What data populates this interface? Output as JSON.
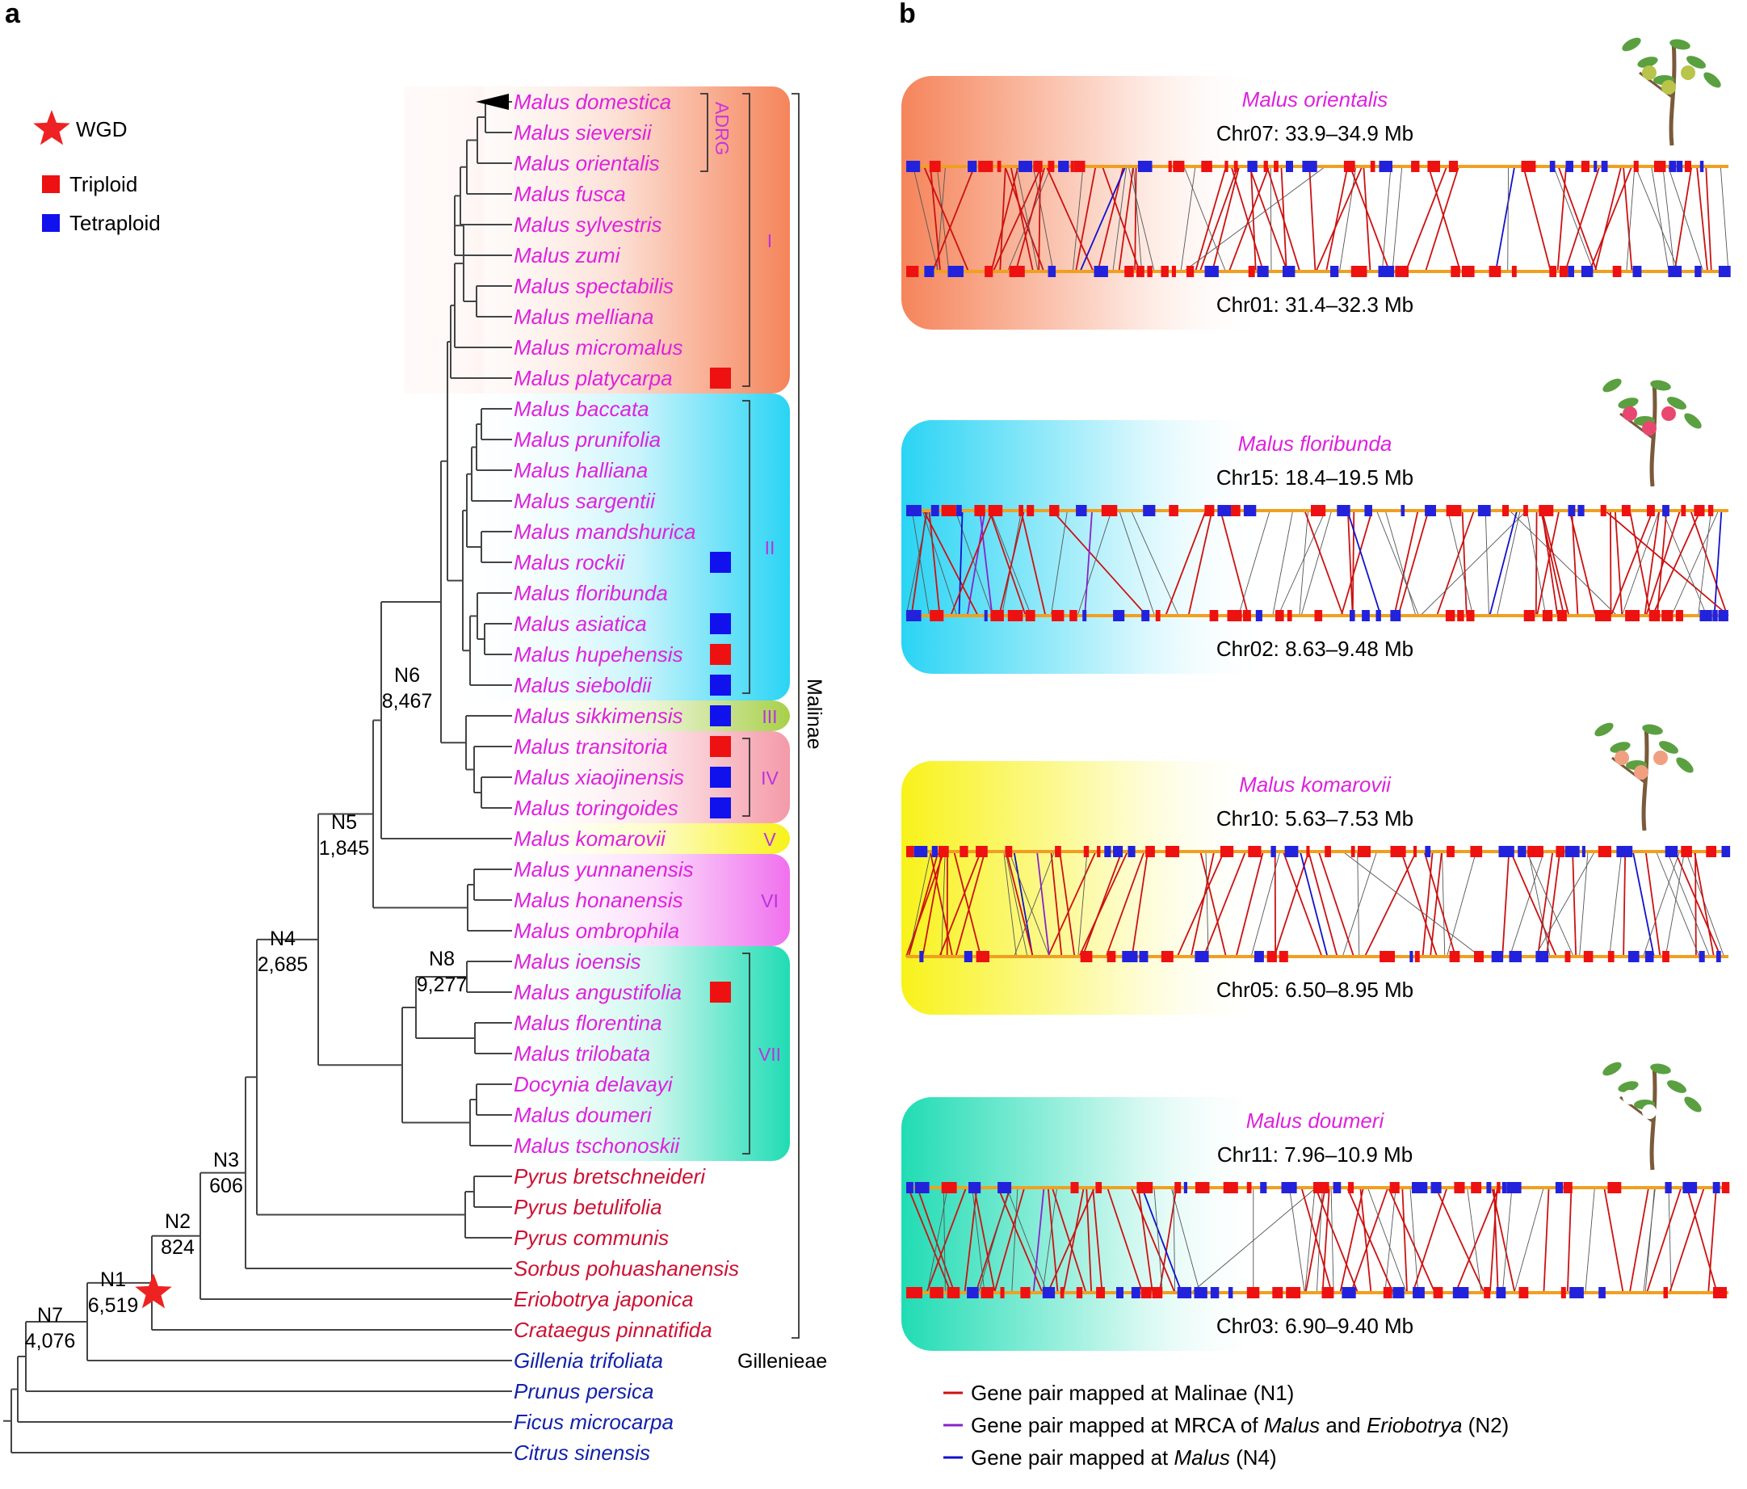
{
  "panel_a_label": "a",
  "panel_b_label": "b",
  "legend_a": [
    {
      "kind": "star",
      "label": "WGD",
      "color": "#ee2222"
    },
    {
      "kind": "square",
      "label": "Triploid",
      "color": "#ee1111"
    },
    {
      "kind": "square",
      "label": "Tetraploid",
      "color": "#1111ee"
    }
  ],
  "colors": {
    "malus": "#dd22dd",
    "malinae_other": "#cc1133",
    "outgroup": "#1122aa",
    "tree": "#444444",
    "triploid": "#ee1111",
    "tetraploid": "#1111ee",
    "chrom": "#f0a020",
    "gene_red": "#ee1111",
    "gene_blue": "#2222dd",
    "link_red": "#cc1111",
    "link_purple": "#8822cc",
    "link_blue": "#1111cc",
    "link_grey": "#555555"
  },
  "taxa": [
    {
      "name": "Malus domestica",
      "group": "malus",
      "ploidy": "",
      "collapsed": true
    },
    {
      "name": "Malus sieversii",
      "group": "malus",
      "ploidy": ""
    },
    {
      "name": "Malus orientalis",
      "group": "malus",
      "ploidy": ""
    },
    {
      "name": "Malus fusca",
      "group": "malus",
      "ploidy": ""
    },
    {
      "name": "Malus sylvestris",
      "group": "malus",
      "ploidy": ""
    },
    {
      "name": "Malus zumi",
      "group": "malus",
      "ploidy": ""
    },
    {
      "name": "Malus spectabilis",
      "group": "malus",
      "ploidy": ""
    },
    {
      "name": "Malus melliana",
      "group": "malus",
      "ploidy": ""
    },
    {
      "name": "Malus micromalus",
      "group": "malus",
      "ploidy": ""
    },
    {
      "name": "Malus platycarpa",
      "group": "malus",
      "ploidy": "triploid"
    },
    {
      "name": "Malus baccata",
      "group": "malus",
      "ploidy": ""
    },
    {
      "name": "Malus prunifolia",
      "group": "malus",
      "ploidy": ""
    },
    {
      "name": "Malus halliana",
      "group": "malus",
      "ploidy": ""
    },
    {
      "name": "Malus sargentii",
      "group": "malus",
      "ploidy": ""
    },
    {
      "name": "Malus mandshurica",
      "group": "malus",
      "ploidy": ""
    },
    {
      "name": "Malus rockii",
      "group": "malus",
      "ploidy": "tetraploid"
    },
    {
      "name": "Malus floribunda",
      "group": "malus",
      "ploidy": ""
    },
    {
      "name": "Malus asiatica",
      "group": "malus",
      "ploidy": "tetraploid"
    },
    {
      "name": "Malus hupehensis",
      "group": "malus",
      "ploidy": "triploid"
    },
    {
      "name": "Malus sieboldii",
      "group": "malus",
      "ploidy": "tetraploid"
    },
    {
      "name": "Malus sikkimensis",
      "group": "malus",
      "ploidy": "tetraploid"
    },
    {
      "name": "Malus transitoria",
      "group": "malus",
      "ploidy": "triploid"
    },
    {
      "name": "Malus xiaojinensis",
      "group": "malus",
      "ploidy": "tetraploid"
    },
    {
      "name": "Malus toringoides",
      "group": "malus",
      "ploidy": "tetraploid"
    },
    {
      "name": "Malus komarovii",
      "group": "malus",
      "ploidy": ""
    },
    {
      "name": "Malus yunnanensis",
      "group": "malus",
      "ploidy": ""
    },
    {
      "name": "Malus honanensis",
      "group": "malus",
      "ploidy": ""
    },
    {
      "name": "Malus ombrophila",
      "group": "malus",
      "ploidy": ""
    },
    {
      "name": "Malus ioensis",
      "group": "malus",
      "ploidy": ""
    },
    {
      "name": "Malus angustifolia",
      "group": "malus",
      "ploidy": "triploid"
    },
    {
      "name": "Malus florentina",
      "group": "malus",
      "ploidy": ""
    },
    {
      "name": "Malus trilobata",
      "group": "malus",
      "ploidy": ""
    },
    {
      "name": "Docynia delavayi",
      "group": "malus",
      "ploidy": ""
    },
    {
      "name": "Malus doumeri",
      "group": "malus",
      "ploidy": ""
    },
    {
      "name": "Malus tschonoskii",
      "group": "malus",
      "ploidy": ""
    },
    {
      "name": "Pyrus bretschneideri",
      "group": "malinae_other",
      "ploidy": ""
    },
    {
      "name": "Pyrus betulifolia",
      "group": "malinae_other",
      "ploidy": ""
    },
    {
      "name": "Pyrus communis",
      "group": "malinae_other",
      "ploidy": ""
    },
    {
      "name": "Sorbus pohuashanensis",
      "group": "malinae_other",
      "ploidy": ""
    },
    {
      "name": "Eriobotrya japonica",
      "group": "malinae_other",
      "ploidy": ""
    },
    {
      "name": "Crataegus pinnatifida",
      "group": "malinae_other",
      "ploidy": ""
    },
    {
      "name": "Gillenia trifoliata",
      "group": "outgroup",
      "ploidy": ""
    },
    {
      "name": "Prunus persica",
      "group": "outgroup",
      "ploidy": ""
    },
    {
      "name": "Ficus microcarpa",
      "group": "outgroup",
      "ploidy": ""
    },
    {
      "name": "Citrus sinensis",
      "group": "outgroup",
      "ploidy": ""
    }
  ],
  "nodes": [
    {
      "id": "N1",
      "value": "6,519"
    },
    {
      "id": "N2",
      "value": "824"
    },
    {
      "id": "N3",
      "value": "606"
    },
    {
      "id": "N4",
      "value": "2,685"
    },
    {
      "id": "N5",
      "value": "1,845"
    },
    {
      "id": "N6",
      "value": "8,467"
    },
    {
      "id": "N7",
      "value": "4,076"
    },
    {
      "id": "N8",
      "value": "9,277"
    }
  ],
  "clades": [
    {
      "label": "I",
      "first": 0,
      "last": 9,
      "color": "#f5845a"
    },
    {
      "label": "II",
      "first": 10,
      "last": 19,
      "color": "#2ad4f4"
    },
    {
      "label": "III",
      "first": 20,
      "last": 20,
      "color": "#a8d04a"
    },
    {
      "label": "IV",
      "first": 21,
      "last": 23,
      "color": "#f49aa8"
    },
    {
      "label": "V",
      "first": 24,
      "last": 24,
      "color": "#f8f21a"
    },
    {
      "label": "VI",
      "first": 25,
      "last": 27,
      "color": "#f070ee"
    },
    {
      "label": "VII",
      "first": 28,
      "last": 34,
      "color": "#20dcb4"
    }
  ],
  "adrg_label": "ADRG",
  "tribe_labels": {
    "malinae": "Malinae",
    "gillenieae": "Gillenieae"
  },
  "synteny_panels": [
    {
      "species": "Malus orientalis",
      "top_chr": "Chr07: 33.9–34.9 Mb",
      "bottom_chr": "Chr01: 31.4–32.3 Mb",
      "color": "#f5845a"
    },
    {
      "species": "Malus floribunda",
      "top_chr": "Chr15: 18.4–19.5 Mb",
      "bottom_chr": "Chr02: 8.63–9.48 Mb",
      "color": "#2ad4f4"
    },
    {
      "species": "Malus komarovii",
      "top_chr": "Chr10: 5.63–7.53 Mb",
      "bottom_chr": "Chr05: 6.50–8.95 Mb",
      "color": "#f8f21a"
    },
    {
      "species": "Malus doumeri",
      "top_chr": "Chr11: 7.96–10.9 Mb",
      "bottom_chr": "Chr03: 6.90–9.40 Mb",
      "color": "#20dcb4"
    }
  ],
  "legend_b": [
    {
      "color": "#cc1111",
      "parts": [
        {
          "t": "Gene pair mapped at Malinae (N1)",
          "i": false
        }
      ]
    },
    {
      "color": "#8822cc",
      "parts": [
        {
          "t": "Gene pair mapped at MRCA of ",
          "i": false
        },
        {
          "t": "Malus",
          "i": true
        },
        {
          "t": " and ",
          "i": false
        },
        {
          "t": "Eriobotrya",
          "i": true
        },
        {
          "t": " (N2)",
          "i": false
        }
      ]
    },
    {
      "color": "#1111cc",
      "parts": [
        {
          "t": "Gene pair mapped at ",
          "i": false
        },
        {
          "t": "Malus",
          "i": true
        },
        {
          "t": " (N4)",
          "i": false
        }
      ]
    }
  ]
}
